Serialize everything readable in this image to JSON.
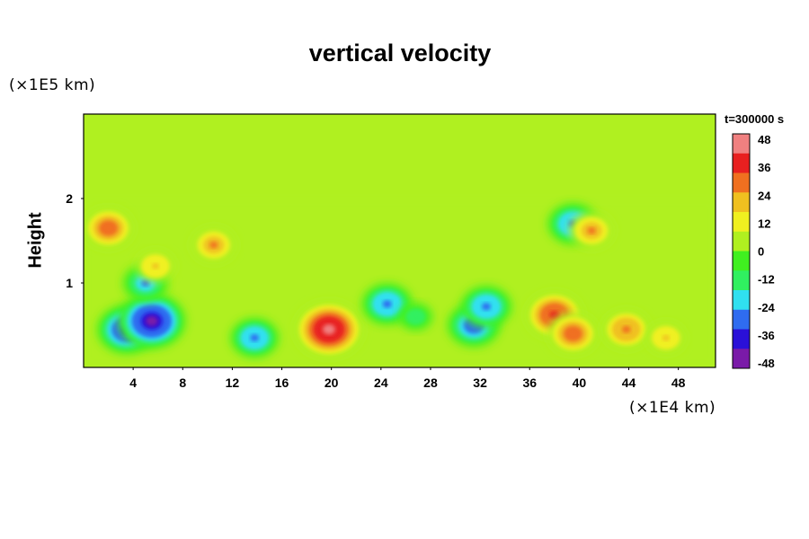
{
  "chart_data": {
    "type": "heatmap",
    "title": "vertical velocity",
    "ylabel": "Height",
    "xlabel": "",
    "x_unit": "(×1E4 km)",
    "y_unit": "(×1E5 km)",
    "time_label": "t=300000 s",
    "xlim": [
      0,
      51
    ],
    "ylim": [
      0,
      3
    ],
    "x_ticks": [
      4,
      8,
      12,
      16,
      20,
      24,
      28,
      32,
      36,
      40,
      44,
      48
    ],
    "y_ticks": [
      1,
      2
    ],
    "colorbar": {
      "ticks": [
        48,
        36,
        24,
        12,
        0,
        -12,
        -24,
        -36,
        -48
      ],
      "range": [
        -48,
        48
      ],
      "colors": [
        "#7a1aa8",
        "#2a10d8",
        "#2f6cf0",
        "#30e0f0",
        "#30f060",
        "#40f020",
        "#b0f020",
        "#f0f020",
        "#f0c020",
        "#f07020",
        "#e82020",
        "#f08080"
      ]
    },
    "features": [
      {
        "x": 2.0,
        "y": 1.65,
        "value": 30
      },
      {
        "x": 3.5,
        "y": 0.45,
        "value": -38
      },
      {
        "x": 5.5,
        "y": 0.55,
        "value": -45
      },
      {
        "x": 5.0,
        "y": 1.0,
        "value": -25
      },
      {
        "x": 5.8,
        "y": 1.2,
        "value": 20
      },
      {
        "x": 10.5,
        "y": 1.45,
        "value": 25
      },
      {
        "x": 13.8,
        "y": 0.35,
        "value": -28
      },
      {
        "x": 19.8,
        "y": 0.45,
        "value": 46
      },
      {
        "x": 24.5,
        "y": 0.75,
        "value": -30
      },
      {
        "x": 26.8,
        "y": 0.6,
        "value": -15
      },
      {
        "x": 31.5,
        "y": 0.5,
        "value": -32
      },
      {
        "x": 32.5,
        "y": 0.72,
        "value": -30
      },
      {
        "x": 38.0,
        "y": 0.62,
        "value": 36
      },
      {
        "x": 39.5,
        "y": 0.4,
        "value": 30
      },
      {
        "x": 39.5,
        "y": 1.7,
        "value": -30
      },
      {
        "x": 41.0,
        "y": 1.62,
        "value": 25
      },
      {
        "x": 43.8,
        "y": 0.45,
        "value": 28
      },
      {
        "x": 47.0,
        "y": 0.35,
        "value": 20
      }
    ]
  }
}
